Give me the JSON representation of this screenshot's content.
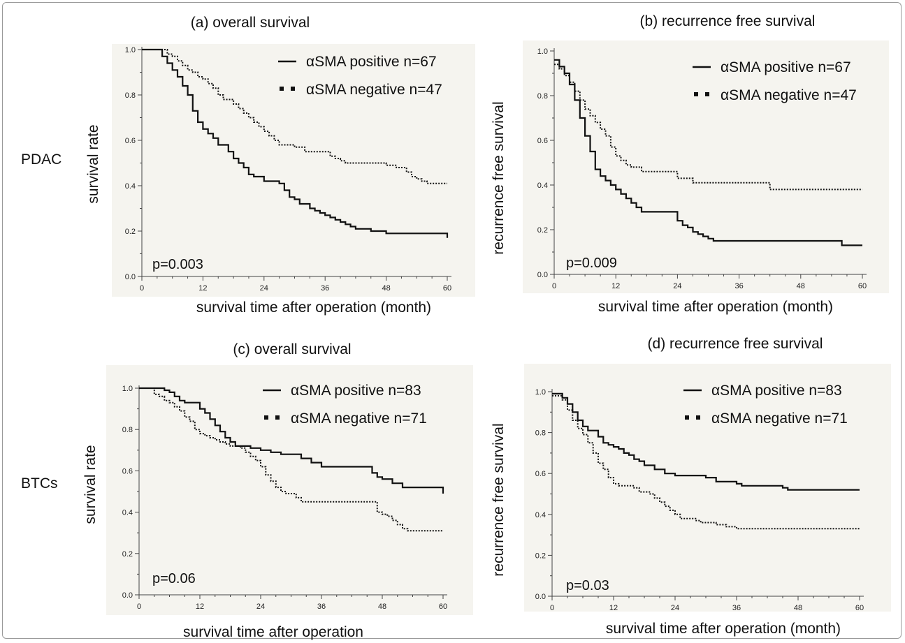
{
  "row_labels": [
    "PDAC",
    "BTCs"
  ],
  "chart_data": [
    {
      "type": "line",
      "title": "(a) overall survival",
      "xlabel": "survival time after operation (month)",
      "ylabel": "survival rate",
      "xlim": [
        0,
        60
      ],
      "ylim": [
        0.0,
        1.0
      ],
      "xticks": [
        "0",
        "12",
        "24",
        "36",
        "48",
        "60"
      ],
      "yticks": [
        "0.0",
        "0.2",
        "0.4",
        "0.6",
        "0.8",
        "1.0"
      ],
      "pvalue": "p=0.003",
      "legend_position": "top-right",
      "series": [
        {
          "name": "αSMA positive n=67",
          "style": "solid",
          "x": [
            0,
            4,
            5,
            6,
            7,
            8,
            9,
            10,
            11,
            12,
            13,
            14,
            15,
            17,
            18,
            19,
            20,
            21,
            22,
            24,
            27,
            28,
            29,
            30,
            31,
            33,
            34,
            35,
            36,
            37,
            38,
            39,
            40,
            41,
            42,
            43,
            45,
            48,
            59,
            60
          ],
          "y": [
            1.0,
            0.97,
            0.94,
            0.91,
            0.88,
            0.84,
            0.8,
            0.73,
            0.68,
            0.65,
            0.63,
            0.61,
            0.58,
            0.55,
            0.52,
            0.5,
            0.48,
            0.45,
            0.44,
            0.42,
            0.41,
            0.38,
            0.35,
            0.34,
            0.32,
            0.3,
            0.29,
            0.28,
            0.27,
            0.26,
            0.25,
            0.24,
            0.23,
            0.22,
            0.21,
            0.21,
            0.2,
            0.19,
            0.19,
            0.17
          ]
        },
        {
          "name": "αSMA negative n=47",
          "style": "dotted",
          "x": [
            0,
            5,
            6,
            7,
            8,
            9,
            10,
            11,
            12,
            13,
            14,
            15,
            16,
            18,
            19,
            20,
            21,
            22,
            23,
            24,
            25,
            26,
            27,
            29,
            30,
            31,
            32,
            36,
            37,
            38,
            39,
            40,
            41,
            42,
            48,
            50,
            52,
            53,
            54,
            55,
            56,
            60
          ],
          "y": [
            1.0,
            0.98,
            0.97,
            0.95,
            0.93,
            0.91,
            0.9,
            0.88,
            0.87,
            0.85,
            0.83,
            0.8,
            0.78,
            0.76,
            0.74,
            0.72,
            0.7,
            0.68,
            0.66,
            0.64,
            0.62,
            0.6,
            0.58,
            0.58,
            0.57,
            0.57,
            0.55,
            0.55,
            0.53,
            0.52,
            0.51,
            0.5,
            0.5,
            0.5,
            0.49,
            0.48,
            0.46,
            0.44,
            0.43,
            0.42,
            0.41,
            0.41
          ]
        }
      ]
    },
    {
      "type": "line",
      "title": "(b) recurrence free survival",
      "xlabel": "survival time after operation (month)",
      "ylabel": "recurrence free survival",
      "xlim": [
        0,
        60
      ],
      "ylim": [
        0.0,
        1.0
      ],
      "xticks": [
        "0",
        "12",
        "24",
        "36",
        "48",
        "60"
      ],
      "yticks": [
        "0.0",
        "0.2",
        "0.4",
        "0.6",
        "0.8",
        "1.0"
      ],
      "pvalue": "p=0.009",
      "legend_position": "top-right",
      "series": [
        {
          "name": "αSMA positive n=67",
          "style": "solid",
          "x": [
            0,
            1,
            2,
            3,
            4,
            5,
            6,
            7,
            8,
            9,
            10,
            11,
            12,
            13,
            14,
            15,
            16,
            17,
            18,
            19,
            20,
            22,
            24,
            25,
            26,
            27,
            28,
            29,
            30,
            31,
            32,
            35,
            40,
            48,
            54,
            56,
            60
          ],
          "y": [
            0.96,
            0.93,
            0.9,
            0.85,
            0.78,
            0.7,
            0.62,
            0.55,
            0.47,
            0.44,
            0.42,
            0.4,
            0.38,
            0.36,
            0.34,
            0.32,
            0.3,
            0.28,
            0.28,
            0.28,
            0.28,
            0.28,
            0.24,
            0.22,
            0.21,
            0.19,
            0.18,
            0.17,
            0.16,
            0.15,
            0.15,
            0.15,
            0.15,
            0.15,
            0.15,
            0.13,
            0.13
          ]
        },
        {
          "name": "αSMA negative n=47",
          "style": "dotted",
          "x": [
            0,
            1,
            2,
            3,
            4,
            5,
            6,
            7,
            8,
            9,
            10,
            11,
            12,
            13,
            14,
            15,
            16,
            17,
            18,
            20,
            24,
            25,
            27,
            30,
            35,
            40,
            42,
            48,
            60
          ],
          "y": [
            0.94,
            0.92,
            0.89,
            0.86,
            0.82,
            0.78,
            0.74,
            0.71,
            0.68,
            0.65,
            0.62,
            0.57,
            0.53,
            0.51,
            0.49,
            0.48,
            0.48,
            0.46,
            0.46,
            0.46,
            0.43,
            0.43,
            0.41,
            0.41,
            0.41,
            0.41,
            0.38,
            0.38,
            0.38
          ]
        }
      ]
    },
    {
      "type": "line",
      "title": "(c) overall survival",
      "xlabel": "survival time after operation",
      "ylabel": "survival rate",
      "xlim": [
        0,
        60
      ],
      "ylim": [
        0.0,
        1.0
      ],
      "xticks": [
        "0",
        "12",
        "24",
        "36",
        "48",
        "60"
      ],
      "yticks": [
        "0.0",
        "0.2",
        "0.4",
        "0.6",
        "0.8",
        "1.0"
      ],
      "pvalue": "p=0.06",
      "legend_position": "top-right",
      "series": [
        {
          "name": "αSMA positive n=83",
          "style": "solid",
          "x": [
            0,
            4,
            5,
            6,
            7,
            8,
            9,
            10,
            11,
            12,
            13,
            14,
            15,
            16,
            17,
            18,
            19,
            20,
            22,
            24,
            26,
            28,
            30,
            32,
            34,
            36,
            38,
            40,
            44,
            46,
            47,
            48,
            50,
            52,
            60
          ],
          "y": [
            1.0,
            1.0,
            0.99,
            0.98,
            0.96,
            0.94,
            0.93,
            0.93,
            0.93,
            0.9,
            0.88,
            0.85,
            0.82,
            0.79,
            0.76,
            0.74,
            0.72,
            0.72,
            0.71,
            0.7,
            0.69,
            0.68,
            0.68,
            0.66,
            0.64,
            0.62,
            0.62,
            0.62,
            0.62,
            0.59,
            0.57,
            0.56,
            0.54,
            0.52,
            0.49
          ]
        },
        {
          "name": "αSMA negative n=71",
          "style": "dotted",
          "x": [
            0,
            3,
            4,
            5,
            6,
            7,
            8,
            9,
            10,
            11,
            12,
            13,
            14,
            15,
            16,
            17,
            18,
            20,
            21,
            22,
            23,
            24,
            25,
            26,
            27,
            28,
            29,
            31,
            32,
            36,
            40,
            46,
            47,
            48,
            49,
            50,
            51,
            52,
            53,
            60
          ],
          "y": [
            1.0,
            0.97,
            0.96,
            0.94,
            0.93,
            0.91,
            0.89,
            0.86,
            0.84,
            0.8,
            0.78,
            0.77,
            0.76,
            0.75,
            0.74,
            0.73,
            0.72,
            0.71,
            0.69,
            0.67,
            0.65,
            0.62,
            0.58,
            0.55,
            0.52,
            0.5,
            0.49,
            0.47,
            0.45,
            0.45,
            0.45,
            0.45,
            0.4,
            0.39,
            0.38,
            0.36,
            0.34,
            0.32,
            0.31,
            0.31
          ]
        }
      ]
    },
    {
      "type": "line",
      "title": "(d) recurrence free survival",
      "xlabel": "survival time after operation (month)",
      "ylabel": "recurrence free survival",
      "xlim": [
        0,
        60
      ],
      "ylim": [
        0.0,
        1.0
      ],
      "xticks": [
        "0",
        "12",
        "24",
        "36",
        "48",
        "60"
      ],
      "yticks": [
        "0.0",
        "0.2",
        "0.4",
        "0.6",
        "0.8",
        "1.0"
      ],
      "pvalue": "p=0.03",
      "legend_position": "top-right",
      "series": [
        {
          "name": "αSMA positive n=83",
          "style": "solid",
          "x": [
            0,
            2,
            3,
            4,
            5,
            6,
            7,
            9,
            10,
            11,
            12,
            13,
            14,
            15,
            16,
            17,
            18,
            20,
            22,
            24,
            30,
            32,
            35,
            36,
            37,
            40,
            45,
            46,
            48,
            60
          ],
          "y": [
            0.99,
            0.97,
            0.94,
            0.9,
            0.86,
            0.83,
            0.81,
            0.78,
            0.75,
            0.74,
            0.73,
            0.72,
            0.7,
            0.69,
            0.67,
            0.66,
            0.64,
            0.62,
            0.6,
            0.59,
            0.58,
            0.56,
            0.56,
            0.55,
            0.54,
            0.54,
            0.53,
            0.52,
            0.52,
            0.52
          ]
        },
        {
          "name": "αSMA negative n=71",
          "style": "dotted",
          "x": [
            0,
            2,
            3,
            4,
            5,
            6,
            7,
            8,
            9,
            10,
            11,
            12,
            13,
            15,
            16,
            17,
            19,
            20,
            21,
            22,
            23,
            24,
            25,
            26,
            27,
            28,
            29,
            30,
            32,
            34,
            36,
            40,
            48,
            60
          ],
          "y": [
            0.98,
            0.96,
            0.91,
            0.86,
            0.82,
            0.79,
            0.75,
            0.7,
            0.65,
            0.62,
            0.58,
            0.55,
            0.54,
            0.54,
            0.53,
            0.51,
            0.5,
            0.48,
            0.46,
            0.44,
            0.42,
            0.4,
            0.38,
            0.38,
            0.38,
            0.37,
            0.36,
            0.36,
            0.35,
            0.34,
            0.33,
            0.33,
            0.33,
            0.33
          ]
        }
      ]
    }
  ]
}
